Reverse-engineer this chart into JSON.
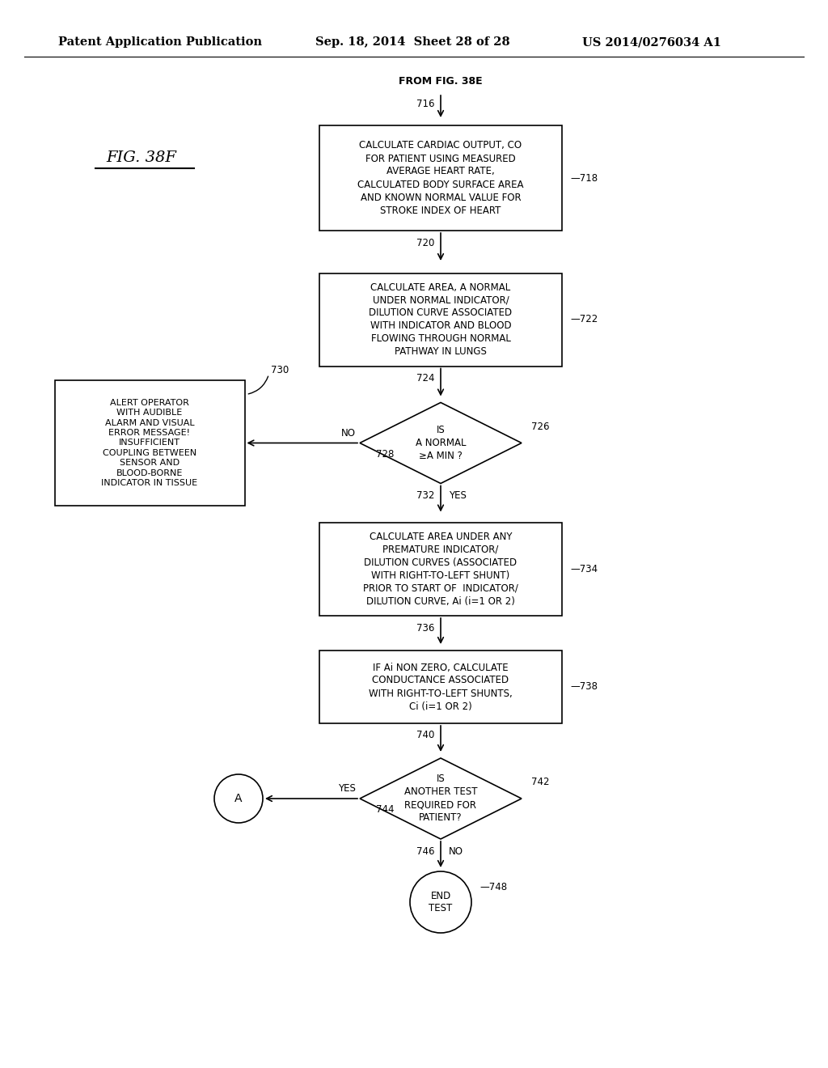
{
  "header_left": "Patent Application Publication",
  "header_mid": "Sep. 18, 2014  Sheet 28 of 28",
  "header_right": "US 2014/0276034 A1",
  "fig_label": "FIG. 38F",
  "from_label": "FROM FIG. 38E",
  "box718_text": "CALCULATE CARDIAC OUTPUT, CO\nFOR PATIENT USING MEASURED\nAVERAGE HEART RATE,\nCALCULATED BODY SURFACE AREA\nAND KNOWN NORMAL VALUE FOR\nSTROKE INDEX OF HEART",
  "box722_text": "CALCULATE AREA, A NORMAL\nUNDER NORMAL INDICATOR/\nDILUTION CURVE ASSOCIATED\nWITH INDICATOR AND BLOOD\nFLOWING THROUGH NORMAL\nPATHWAY IN LUNGS",
  "diamond726_text": "IS\nA NORMAL\n≥A MIN ?",
  "box730_text": "ALERT OPERATOR\nWITH AUDIBLE\nALARM AND VISUAL\nERROR MESSAGE!\nINSUFFICIENT\nCOUPLING BETWEEN\nSENSOR AND\nBLOOD-BORNE\nINDICATOR IN TISSUE",
  "box734_text": "CALCULATE AREA UNDER ANY\nPREMATURE INDICATOR/\nDILUTION CURVES (ASSOCIATED\nWITH RIGHT-TO-LEFT SHUNT)\nPRIOR TO START OF  INDICATOR/\nDILUTION CURVE, Ai (i=1 OR 2)",
  "box738_text": "IF Ai NON ZERO, CALCULATE\nCONDUCTANCE ASSOCIATED\nWITH RIGHT-TO-LEFT SHUNTS,\nCi (i=1 OR 2)",
  "diamond742_text": "IS\nANOTHER TEST\nREQUIRED FOR\nPATIENT?",
  "end_text": "END\nTEST",
  "bg_color": "#ffffff"
}
